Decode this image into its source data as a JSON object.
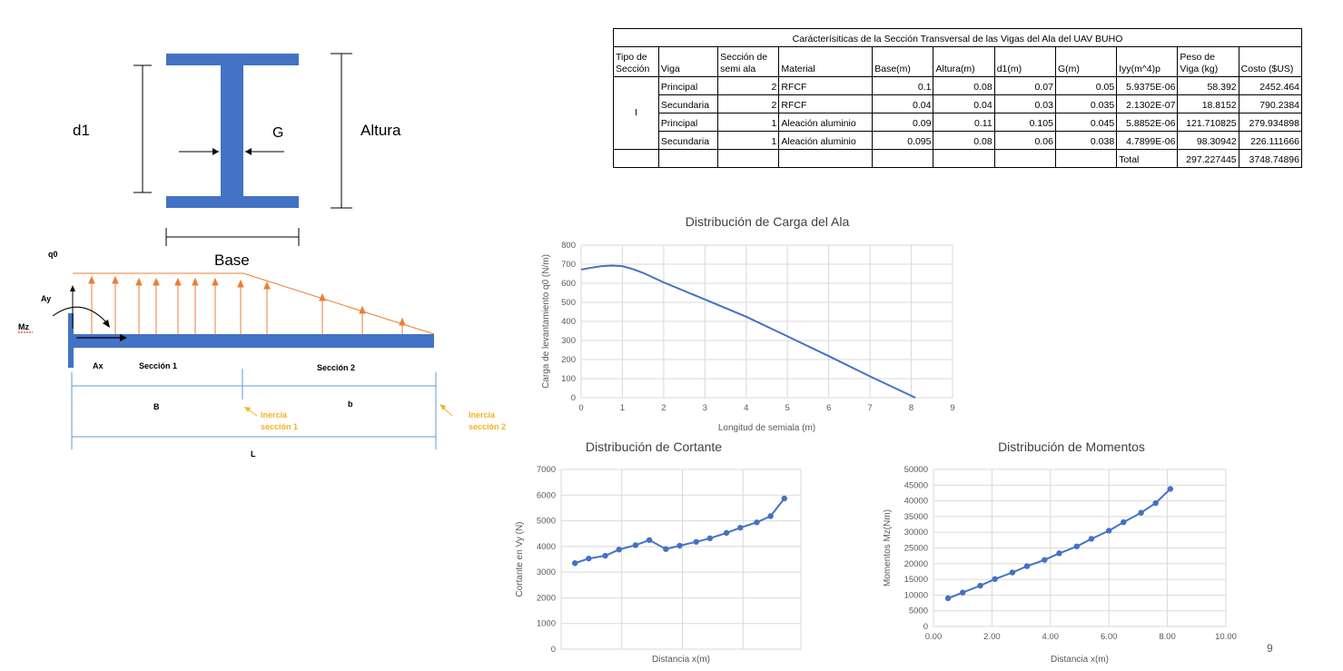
{
  "ibeam": {
    "d1_label": "d1",
    "g_label": "G",
    "altura_label": "Altura",
    "base_label": "Base"
  },
  "beam": {
    "q0": "q0",
    "ay": "Ay",
    "mz": "Mz",
    "ax": "Ax",
    "seccion1": "Sección 1",
    "seccion2": "Sección 2",
    "B": "B",
    "b": "b",
    "L": "L",
    "inercia1_line1": "Inercia",
    "inercia1_line2": "sección 1",
    "inercia2_line1": "Inercia",
    "inercia2_line2": "sección 2",
    "colors": {
      "beam": "#4472c4",
      "load": "#ed7d31",
      "note": "#f0b41e",
      "dim": "#5b9bd5"
    }
  },
  "table": {
    "title": "Carácterísiticas de la Sección Transversal de las Vigas del Ala del UAV BUHO",
    "headers": [
      "Tipo de Sección",
      "Viga",
      "Sección de semi ala",
      "Material",
      "Base(m)",
      "Altura(m)",
      "d1(m)",
      "G(m)",
      "Iyy(m^4)p",
      "Peso de Viga (kg)",
      "Costo ($US)"
    ],
    "tipo": "I",
    "rows": [
      [
        "Principal",
        "2",
        "RFCF",
        "0.1",
        "0.08",
        "0.07",
        "0.05",
        "5.9375E-06",
        "58.392",
        "2452.464"
      ],
      [
        "Secundaria",
        "2",
        "RFCF",
        "0.04",
        "0.04",
        "0.03",
        "0.035",
        "2.1302E-07",
        "18.8152",
        "790.2384"
      ],
      [
        "Principal",
        "1",
        "Aleación aluminio",
        "0.09",
        "0.11",
        "0.105",
        "0.045",
        "5.8852E-06",
        "121.710825",
        "279.934898"
      ],
      [
        "Secundaria",
        "1",
        "Aleación aluminio",
        "0.095",
        "0.08",
        "0.06",
        "0.038",
        "4.7899E-06",
        "98.30942",
        "226.111666"
      ]
    ],
    "total_label": "Total",
    "total_peso": "297.227445",
    "total_costo": "3748.74896"
  },
  "page_number": "9",
  "chart_data": [
    {
      "type": "line",
      "title": "Distribución de Carga del Ala",
      "xlabel": "Longitud de semiala (m)",
      "ylabel": "Carga de levantamiento q0 (N/m)",
      "xlim": [
        0,
        9
      ],
      "ylim": [
        0,
        800
      ],
      "xticks": [
        0,
        1,
        2,
        3,
        4,
        5,
        6,
        7,
        8,
        9
      ],
      "yticks": [
        0,
        100,
        200,
        300,
        400,
        500,
        600,
        700,
        800
      ],
      "grid": true,
      "x": [
        0,
        0.25,
        0.5,
        0.75,
        1.0,
        1.25,
        1.5,
        2,
        3,
        4,
        5,
        6,
        7,
        8.1
      ],
      "y": [
        672,
        682,
        690,
        693,
        690,
        675,
        655,
        605,
        515,
        425,
        322,
        218,
        112,
        0
      ],
      "color": "#4472c4"
    },
    {
      "type": "line",
      "title": "Distribución de Cortante",
      "xlabel": "Distancia x(m)",
      "ylabel": "Cortante en Vy (N)",
      "ylim": [
        0,
        7000
      ],
      "yticks": [
        0,
        1000,
        2000,
        3000,
        4000,
        5000,
        6000,
        7000
      ],
      "grid": true,
      "x": [
        0.5,
        1.0,
        1.6,
        2.1,
        2.7,
        3.2,
        3.8,
        4.3,
        4.9,
        5.4,
        6.0,
        6.5,
        7.1,
        7.6,
        8.1
      ],
      "y": [
        3350,
        3530,
        3640,
        3880,
        4050,
        4250,
        3900,
        4030,
        4180,
        4320,
        4530,
        4730,
        4940,
        5180,
        5870
      ],
      "markers": true,
      "color": "#4472c4"
    },
    {
      "type": "line",
      "title": "Distribución de Momentos",
      "xlabel": "Distancia x(m)",
      "ylabel": "Momentos Mz(Nm)",
      "xlim": [
        0,
        10
      ],
      "ylim": [
        0,
        50000
      ],
      "xticks": [
        "0.00",
        "2.00",
        "4.00",
        "6.00",
        "8.00",
        "10.00"
      ],
      "yticks": [
        0,
        5000,
        10000,
        15000,
        20000,
        25000,
        30000,
        35000,
        40000,
        45000,
        50000
      ],
      "grid": true,
      "x": [
        0.5,
        1.0,
        1.6,
        2.1,
        2.7,
        3.2,
        3.8,
        4.3,
        4.9,
        5.4,
        6.0,
        6.5,
        7.1,
        7.6,
        8.1
      ],
      "y": [
        9000,
        10800,
        13000,
        15100,
        17200,
        19200,
        21200,
        23300,
        25500,
        27900,
        30500,
        33200,
        36200,
        39300,
        43800
      ],
      "markers": true,
      "color": "#4472c4"
    }
  ]
}
